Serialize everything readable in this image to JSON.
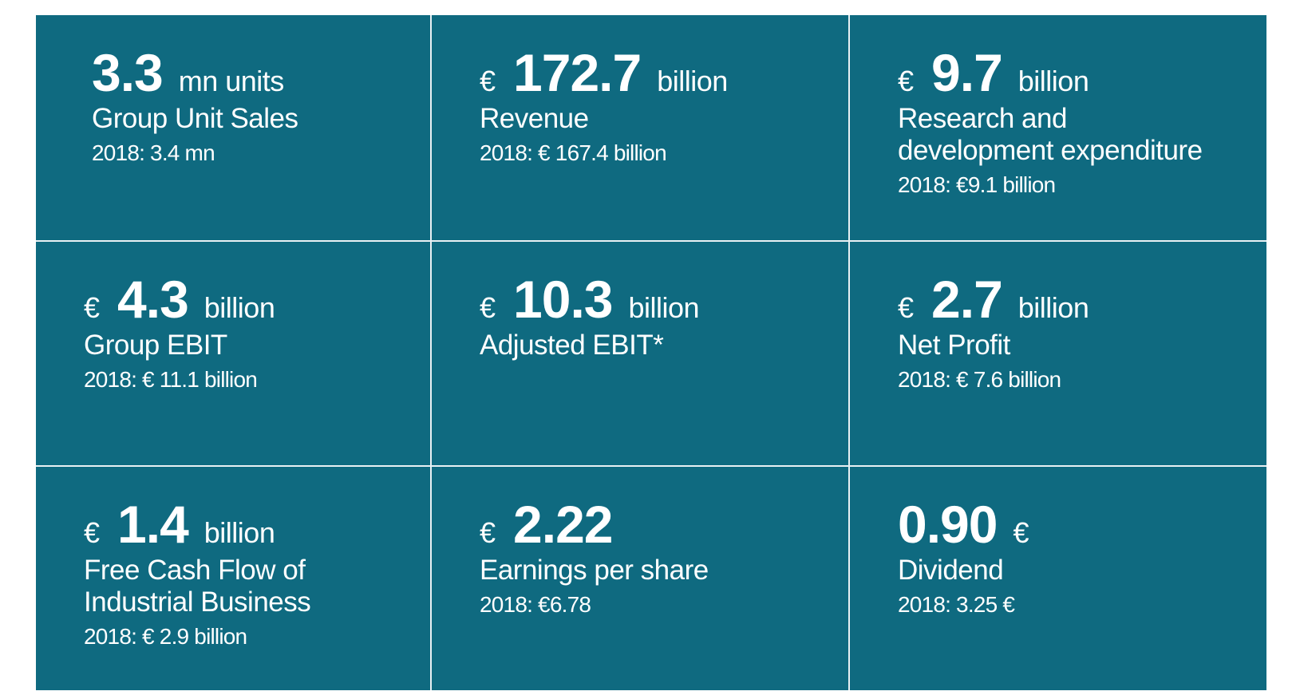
{
  "kpis": [
    {
      "prefix": "",
      "value": "3.3",
      "unit": "mn units",
      "label": "Group Unit Sales",
      "prior": "2018: 3.4 mn"
    },
    {
      "prefix": "€",
      "value": "172.7",
      "unit": "billion",
      "label": "Revenue",
      "prior": "2018: € 167.4 billion"
    },
    {
      "prefix": "€",
      "value": "9.7",
      "unit": "billion",
      "label": "Research and development expenditure",
      "prior": "2018: €9.1 billion"
    },
    {
      "prefix": "€",
      "value": "4.3",
      "unit": "billion",
      "label": "Group EBIT",
      "prior": "2018: € 11.1 billion"
    },
    {
      "prefix": "€",
      "value": "10.3",
      "unit": "billion",
      "label": "Adjusted EBIT*",
      "prior": ""
    },
    {
      "prefix": "€",
      "value": "2.7",
      "unit": "billion",
      "label": "Net Profit",
      "prior": "2018: € 7.6 billion"
    },
    {
      "prefix": "€",
      "value": "1.4",
      "unit": "billion",
      "label": "Free Cash Flow of Industrial Business",
      "prior": "2018: € 2.9 billion"
    },
    {
      "prefix": "€",
      "value": "2.22",
      "unit": "",
      "label": "Earnings per share",
      "prior": "2018: €6.78"
    },
    {
      "prefix": "",
      "value": "0.90",
      "unit": "€",
      "label": "Dividend",
      "prior": "2018: 3.25 €"
    }
  ]
}
